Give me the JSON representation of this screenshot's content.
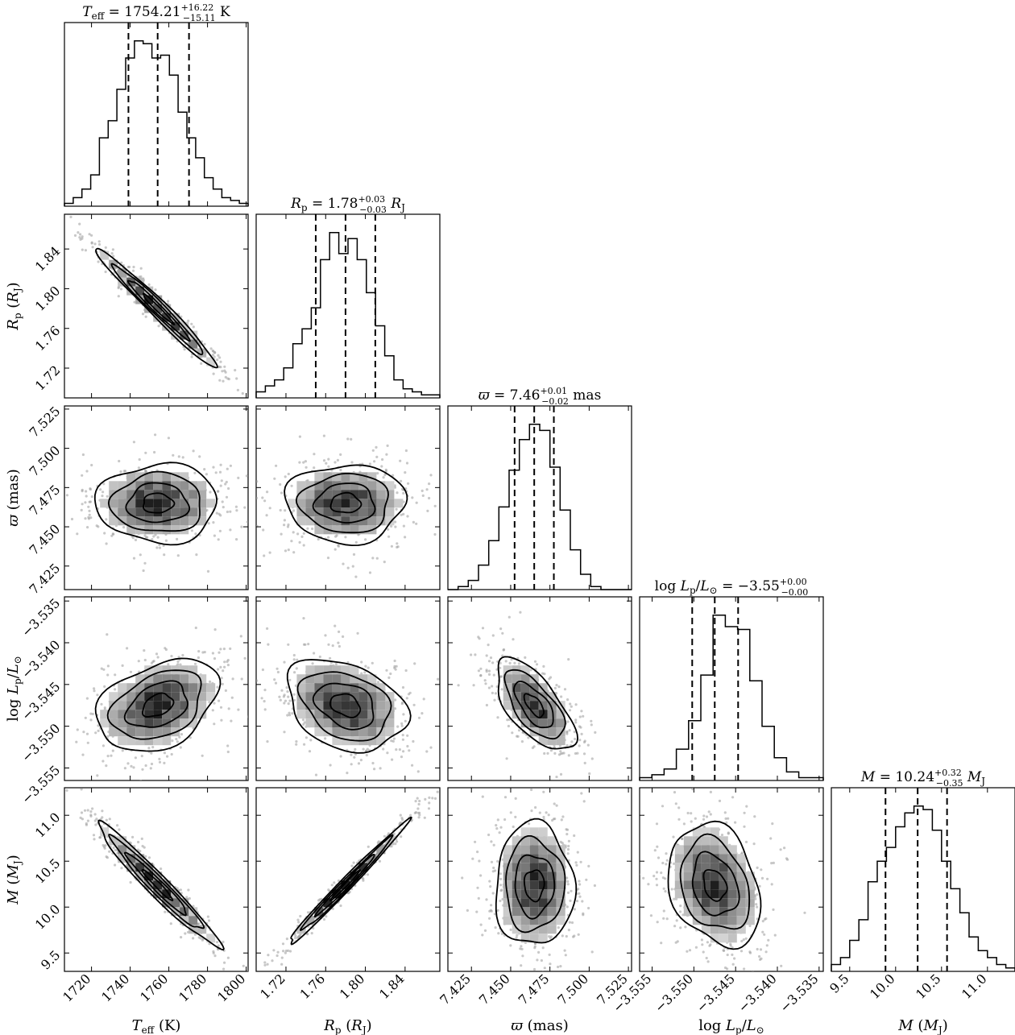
{
  "chart_data": {
    "type": "corner",
    "parameters": [
      {
        "key": "teff",
        "axis_label": "T_eff (K)",
        "title_sym": "T_eff",
        "title_value": "1754.21",
        "plus": "+16.22",
        "minus": "−15.11",
        "unit": "K",
        "median": 1754.21,
        "q16": 1739.1,
        "q84": 1770.43,
        "range": [
          1706,
          1801
        ],
        "ticks": [
          1720,
          1740,
          1760,
          1780,
          1800
        ],
        "hist": [
          1,
          3,
          6,
          11,
          24,
          30,
          41,
          52,
          58,
          57,
          52,
          53,
          46,
          33,
          24,
          17,
          10,
          6,
          3,
          2,
          1
        ]
      },
      {
        "key": "rp",
        "axis_label": "R_p (R_J)",
        "title_sym": "R_p",
        "title_value": "1.78",
        "plus": "+0.03",
        "minus": "−0.03",
        "unit": "R_J",
        "median": 1.78,
        "q16": 1.75,
        "q84": 1.81,
        "range": [
          1.69,
          1.875
        ],
        "ticks": [
          1.72,
          1.76,
          1.8,
          1.84
        ],
        "hist": [
          2,
          4,
          6,
          10,
          18,
          23,
          30,
          46,
          55,
          48,
          53,
          46,
          35,
          24,
          14,
          6,
          3,
          2,
          1,
          1
        ]
      },
      {
        "key": "plx",
        "axis_label": "ϖ (mas)",
        "title_sym": "ϖ",
        "title_value": "7.46",
        "plus": "+0.01",
        "minus": "−0.02",
        "unit": "mas",
        "median": 7.465,
        "q16": 7.4525,
        "q84": 7.4775,
        "range": [
          7.41,
          7.527
        ],
        "ticks": [
          7.425,
          7.45,
          7.475,
          7.5,
          7.525
        ],
        "hist": [
          0,
          1,
          3,
          8,
          16,
          27,
          39,
          49,
          54,
          52,
          40,
          26,
          13,
          5,
          1,
          0,
          0,
          0
        ]
      },
      {
        "key": "logl",
        "axis_label": "log L_p/L_⊙",
        "title_sym": "log L_p/L_⊙",
        "title_value": "−3.55",
        "plus": "+0.00",
        "minus": "−0.00",
        "unit": "",
        "median": -3.5475,
        "q16": -3.5502,
        "q84": -3.5447,
        "range": [
          -3.5565,
          -3.5345
        ],
        "ticks": [
          -3.555,
          -3.55,
          -3.545,
          -3.54,
          -3.535
        ],
        "hist": [
          1,
          2,
          4,
          11,
          21,
          37,
          58,
          54,
          53,
          35,
          19,
          8,
          3,
          1,
          1
        ]
      },
      {
        "key": "mass",
        "axis_label": "M (M_J)",
        "title_sym": "M",
        "title_value": "10.24",
        "plus": "+0.32",
        "minus": "−0.35",
        "unit": "M_J",
        "median": 10.24,
        "q16": 9.89,
        "q84": 10.56,
        "range": [
          9.3,
          11.3
        ],
        "ticks": [
          9.5,
          10.0,
          10.5,
          11.0
        ],
        "hist": [
          2,
          4,
          9,
          15,
          26,
          32,
          36,
          42,
          46,
          48,
          47,
          41,
          32,
          24,
          17,
          10,
          6,
          4,
          2,
          1
        ]
      }
    ],
    "correlations": {
      "rp_teff": -0.98,
      "mass_teff": -0.97,
      "mass_rp": 0.99,
      "logl_teff": 0.35,
      "logl_rp": -0.3,
      "logl_plx": -0.65,
      "plx_teff": 0.0,
      "plx_rp": 0.0,
      "mass_plx": 0.0,
      "mass_logl": -0.25
    }
  }
}
